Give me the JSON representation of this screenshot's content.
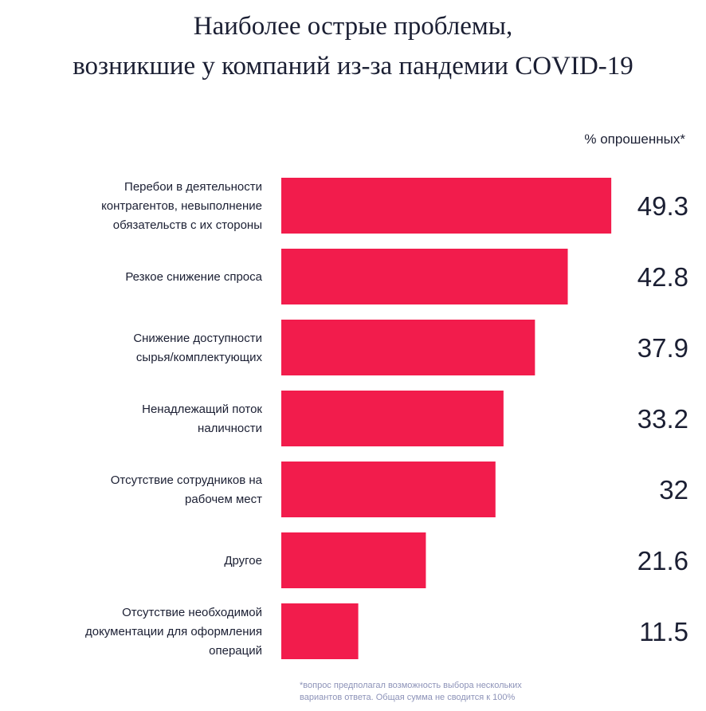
{
  "chart_data": {
    "type": "bar",
    "orientation": "horizontal",
    "title_lines": [
      "Наиболее острые проблемы,",
      "возникшие у компаний из-за пандемии COVID-19"
    ],
    "unit_label": "% опрошенных*",
    "categories": [
      [
        "Перебои в деятельности",
        "контрагентов, невыполнение",
        "обязательств с их стороны"
      ],
      [
        "Резкое снижение спроса"
      ],
      [
        "Снижение доступности",
        "сырья/комплектующих"
      ],
      [
        "Ненадлежащий поток",
        "наличности"
      ],
      [
        "Отсутствие сотрудников на",
        "рабочем мест"
      ],
      [
        "Другое"
      ],
      [
        "Отсутствие необходимой",
        "документации для оформления",
        "операций"
      ]
    ],
    "values": [
      49.3,
      42.8,
      37.9,
      33.2,
      32,
      21.6,
      11.5
    ],
    "value_labels": [
      "49.3",
      "42.8",
      "37.9",
      "33.2",
      "32",
      "21.6",
      "11.5"
    ],
    "bar_color": "#f21c4c",
    "grid": false,
    "footnote_lines": [
      "*вопрос предполагал возможность выбора нескольких",
      "вариантов ответа. Общая сумма не сводится к 100%"
    ]
  }
}
